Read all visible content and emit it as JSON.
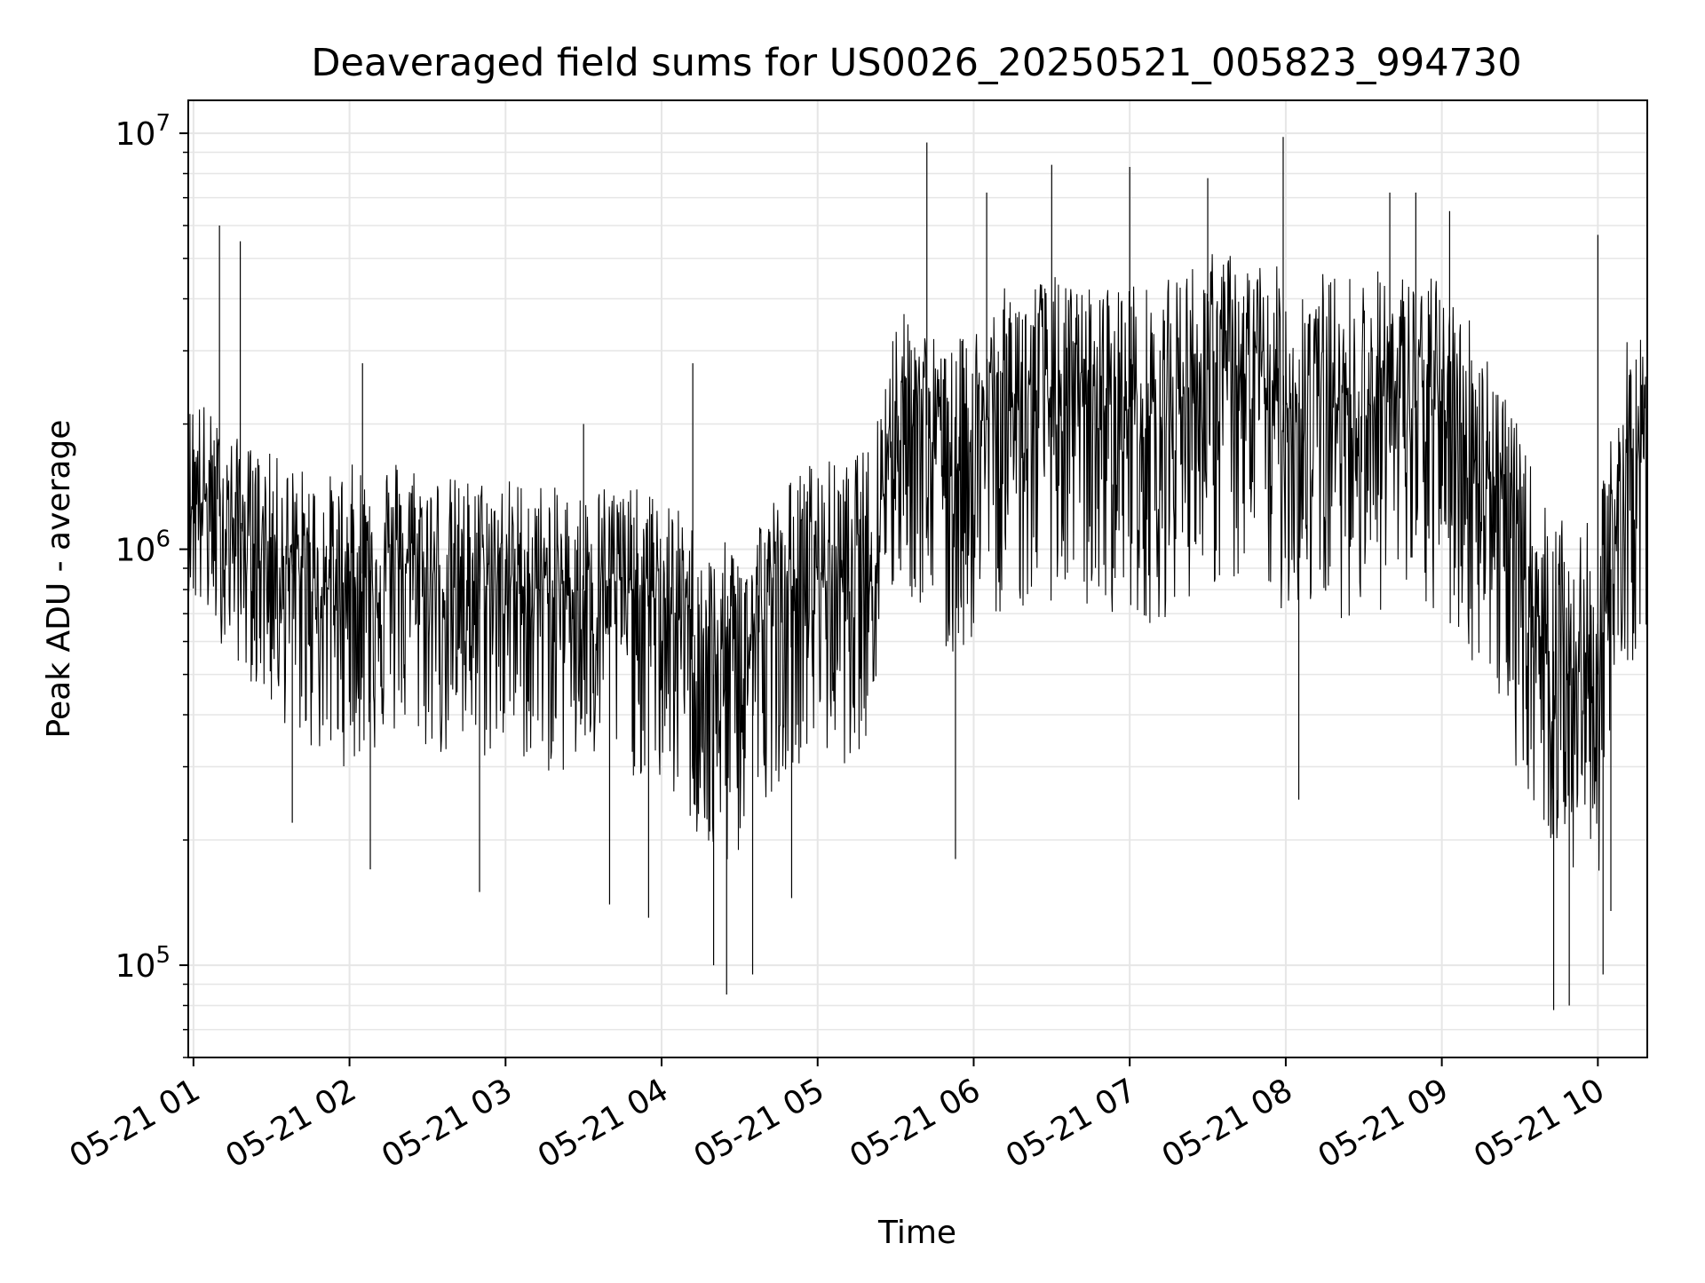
{
  "chart_data": {
    "type": "line",
    "title": "Deaveraged field sums for US0026_20250521_005823_994730",
    "xlabel": "Time",
    "ylabel": "Peak ADU - average",
    "yscale": "log",
    "ylim": [
      60000,
      12000000
    ],
    "xlim": [
      "2025-05-21 00:58",
      "2025-05-21 10:19"
    ],
    "grid": true,
    "line_color": "#000000",
    "grid_color": "#e6e6e6",
    "x_ticks": [
      {
        "value": "2025-05-21 01:00",
        "label": "05-21 01"
      },
      {
        "value": "2025-05-21 02:00",
        "label": "05-21 02"
      },
      {
        "value": "2025-05-21 03:00",
        "label": "05-21 03"
      },
      {
        "value": "2025-05-21 04:00",
        "label": "05-21 04"
      },
      {
        "value": "2025-05-21 05:00",
        "label": "05-21 05"
      },
      {
        "value": "2025-05-21 06:00",
        "label": "05-21 06"
      },
      {
        "value": "2025-05-21 07:00",
        "label": "05-21 07"
      },
      {
        "value": "2025-05-21 08:00",
        "label": "05-21 08"
      },
      {
        "value": "2025-05-21 09:00",
        "label": "05-21 09"
      },
      {
        "value": "2025-05-21 10:00",
        "label": "05-21 10"
      }
    ],
    "y_ticks": [
      {
        "value": 100000,
        "base": "10",
        "exp": "5"
      },
      {
        "value": 1000000,
        "base": "10",
        "exp": "6"
      },
      {
        "value": 10000000,
        "base": "10",
        "exp": "7"
      }
    ],
    "series": [
      {
        "x": [
          "2025-05-21 00:58",
          "2025-05-21 01:00",
          "2025-05-21 01:10",
          "2025-05-21 01:20",
          "2025-05-21 01:30",
          "2025-05-21 01:40",
          "2025-05-21 01:50",
          "2025-05-21 02:00",
          "2025-05-21 02:10",
          "2025-05-21 02:20",
          "2025-05-21 02:30",
          "2025-05-21 02:40",
          "2025-05-21 02:50",
          "2025-05-21 03:00",
          "2025-05-21 03:10",
          "2025-05-21 03:20",
          "2025-05-21 03:30",
          "2025-05-21 03:40",
          "2025-05-21 03:50",
          "2025-05-21 04:00",
          "2025-05-21 04:10",
          "2025-05-21 04:20",
          "2025-05-21 04:30",
          "2025-05-21 04:40",
          "2025-05-21 04:50",
          "2025-05-21 05:00",
          "2025-05-21 05:10",
          "2025-05-21 05:20",
          "2025-05-21 05:30",
          "2025-05-21 05:40",
          "2025-05-21 05:50",
          "2025-05-21 06:00",
          "2025-05-21 06:10",
          "2025-05-21 06:20",
          "2025-05-21 06:30",
          "2025-05-21 06:40",
          "2025-05-21 06:50",
          "2025-05-21 07:00",
          "2025-05-21 07:10",
          "2025-05-21 07:20",
          "2025-05-21 07:30",
          "2025-05-21 07:40",
          "2025-05-21 07:50",
          "2025-05-21 08:00",
          "2025-05-21 08:10",
          "2025-05-21 08:20",
          "2025-05-21 08:30",
          "2025-05-21 08:40",
          "2025-05-21 08:50",
          "2025-05-21 09:00",
          "2025-05-21 09:10",
          "2025-05-21 09:20",
          "2025-05-21 09:30",
          "2025-05-21 09:40",
          "2025-05-21 09:50",
          "2025-05-21 10:00",
          "2025-05-21 10:10",
          "2025-05-21 10:19"
        ],
        "mid": [
          1300000,
          1400000,
          1200000,
          1100000,
          1000000,
          900000,
          800000,
          850000,
          900000,
          950000,
          850000,
          800000,
          850000,
          850000,
          800000,
          800000,
          800000,
          850000,
          800000,
          750000,
          650000,
          500000,
          550000,
          700000,
          800000,
          900000,
          850000,
          950000,
          2200000,
          2100000,
          1600000,
          1900000,
          2200000,
          2300000,
          2300000,
          2200000,
          2200000,
          2200000,
          2000000,
          2400000,
          2700000,
          2600000,
          2400000,
          2200000,
          2300000,
          2200000,
          2300000,
          2300000,
          2200000,
          2200000,
          1800000,
          1500000,
          900000,
          600000,
          500000,
          500000,
          1600000,
          1700000
        ],
        "low": [
          800000,
          700000,
          600000,
          500000,
          400000,
          350000,
          300000,
          300000,
          320000,
          350000,
          320000,
          300000,
          300000,
          320000,
          300000,
          280000,
          280000,
          300000,
          280000,
          260000,
          220000,
          150000,
          180000,
          250000,
          300000,
          320000,
          300000,
          350000,
          800000,
          700000,
          500000,
          600000,
          700000,
          700000,
          750000,
          700000,
          700000,
          700000,
          650000,
          750000,
          800000,
          800000,
          750000,
          700000,
          700000,
          680000,
          700000,
          700000,
          680000,
          650000,
          550000,
          450000,
          280000,
          200000,
          160000,
          160000,
          500000,
          600000
        ],
        "high": [
          2200000,
          2500000,
          2000000,
          1800000,
          1700000,
          1600000,
          1500000,
          1600000,
          1700000,
          1700000,
          1600000,
          1500000,
          1500000,
          1500000,
          1500000,
          1400000,
          1400000,
          1500000,
          1400000,
          1350000,
          1200000,
          1000000,
          1100000,
          1300000,
          1500000,
          1700000,
          1600000,
          1800000,
          3800000,
          3600000,
          3000000,
          3500000,
          4200000,
          4500000,
          4600000,
          4300000,
          4400000,
          4500000,
          4200000,
          4800000,
          5200000,
          5200000,
          5000000,
          4700000,
          4800000,
          4600000,
          4700000,
          4800000,
          4600000,
          4500000,
          3800000,
          3000000,
          1900000,
          1300000,
          1100000,
          1200000,
          3200000,
          3400000
        ]
      }
    ],
    "spikes_high": [
      {
        "x": "2025-05-21 01:10",
        "y": 6000000
      },
      {
        "x": "2025-05-21 01:18",
        "y": 5500000
      },
      {
        "x": "2025-05-21 02:05",
        "y": 2800000
      },
      {
        "x": "2025-05-21 03:30",
        "y": 2000000
      },
      {
        "x": "2025-05-21 04:12",
        "y": 2800000
      },
      {
        "x": "2025-05-21 05:42",
        "y": 9500000
      },
      {
        "x": "2025-05-21 06:05",
        "y": 7200000
      },
      {
        "x": "2025-05-21 06:30",
        "y": 8400000
      },
      {
        "x": "2025-05-21 07:00",
        "y": 8300000
      },
      {
        "x": "2025-05-21 07:30",
        "y": 7800000
      },
      {
        "x": "2025-05-21 07:59",
        "y": 9800000
      },
      {
        "x": "2025-05-21 08:40",
        "y": 7200000
      },
      {
        "x": "2025-05-21 08:50",
        "y": 7200000
      },
      {
        "x": "2025-05-21 09:03",
        "y": 6500000
      },
      {
        "x": "2025-05-21 10:00",
        "y": 5700000
      }
    ],
    "spikes_low": [
      {
        "x": "2025-05-21 01:38",
        "y": 220000
      },
      {
        "x": "2025-05-21 02:08",
        "y": 170000
      },
      {
        "x": "2025-05-21 02:50",
        "y": 150000
      },
      {
        "x": "2025-05-21 03:40",
        "y": 140000
      },
      {
        "x": "2025-05-21 03:55",
        "y": 130000
      },
      {
        "x": "2025-05-21 04:20",
        "y": 100000
      },
      {
        "x": "2025-05-21 04:25",
        "y": 85000
      },
      {
        "x": "2025-05-21 04:35",
        "y": 95000
      },
      {
        "x": "2025-05-21 04:50",
        "y": 145000
      },
      {
        "x": "2025-05-21 05:53",
        "y": 180000
      },
      {
        "x": "2025-05-21 08:05",
        "y": 250000
      },
      {
        "x": "2025-05-21 09:43",
        "y": 78000
      },
      {
        "x": "2025-05-21 09:49",
        "y": 80000
      },
      {
        "x": "2025-05-21 10:02",
        "y": 95000
      },
      {
        "x": "2025-05-21 10:05",
        "y": 135000
      }
    ]
  }
}
